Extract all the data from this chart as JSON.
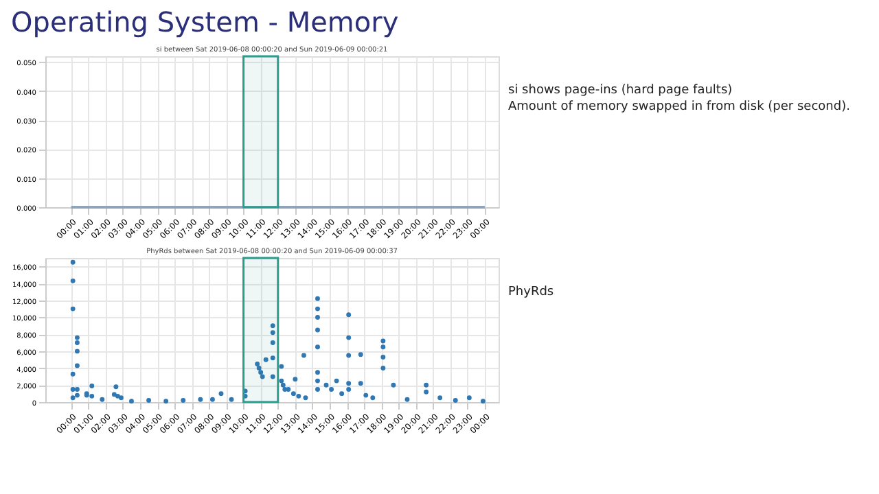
{
  "chart_data": [
    {
      "type": "line",
      "title": "si between Sat 2019-06-08 00:00:20 and Sun 2019-06-09 00:00:21",
      "annotations": [
        "Operating System - Memory",
        "si shows page-ins (hard page faults)",
        "Amount of memory swapped in from disk (per second)."
      ],
      "x": [
        0,
        24
      ],
      "series": [
        {
          "color": "#8fa4b8",
          "values": [
            0,
            0
          ]
        }
      ],
      "xlim": [
        -1.5,
        24.8
      ],
      "xticks": [
        {
          "value": 0,
          "label": "00:00"
        },
        {
          "value": 1,
          "label": "01:00"
        },
        {
          "value": 2,
          "label": "02:00"
        },
        {
          "value": 3,
          "label": "03:00"
        },
        {
          "value": 4,
          "label": "04:00"
        },
        {
          "value": 5,
          "label": "05:00"
        },
        {
          "value": 6,
          "label": "06:00"
        },
        {
          "value": 7,
          "label": "07:00"
        },
        {
          "value": 8,
          "label": "08:00"
        },
        {
          "value": 9,
          "label": "09:00"
        },
        {
          "value": 10,
          "label": "10:00"
        },
        {
          "value": 11,
          "label": "11:00"
        },
        {
          "value": 12,
          "label": "12:00"
        },
        {
          "value": 13,
          "label": "13:00"
        },
        {
          "value": 14,
          "label": "14:00"
        },
        {
          "value": 15,
          "label": "15:00"
        },
        {
          "value": 16,
          "label": "16:00"
        },
        {
          "value": 17,
          "label": "17:00"
        },
        {
          "value": 18,
          "label": "18:00"
        },
        {
          "value": 19,
          "label": "19:00"
        },
        {
          "value": 20,
          "label": "20:00"
        },
        {
          "value": 21,
          "label": "21:00"
        },
        {
          "value": 22,
          "label": "22:00"
        },
        {
          "value": 23,
          "label": "23:00"
        },
        {
          "value": 24,
          "label": "00:00"
        }
      ],
      "ylim": [
        0,
        0.052
      ],
      "yticks": [
        {
          "value": 0,
          "label": "0.000"
        },
        {
          "value": 0.01,
          "label": "0.010"
        },
        {
          "value": 0.02,
          "label": "0.020"
        },
        {
          "value": 0.03,
          "label": "0.030"
        },
        {
          "value": 0.04,
          "label": "0.040"
        },
        {
          "value": 0.05,
          "label": "0.050"
        }
      ],
      "grid": true,
      "legend": false,
      "marker": "none",
      "line_style": "solid",
      "bands": [
        {
          "axis": "x",
          "from": 10,
          "to": 12,
          "color": "#2a9d8f"
        }
      ]
    },
    {
      "type": "scatter",
      "title": "PhyRds between Sat 2019-06-08 00:00:20 and Sun 2019-06-09 00:00:37",
      "annotations": [
        "PhyRds"
      ],
      "x": [
        0.1,
        0.1,
        0.1,
        0.1,
        0.1,
        0.1,
        0.35,
        0.35,
        0.35,
        0.35,
        0.35,
        0.35,
        0.9,
        0.9,
        1.2,
        1.2,
        1.8,
        2.5,
        2.7,
        2.9,
        2.6,
        3.5,
        4.5,
        5.5,
        6.5,
        7.5,
        8.2,
        8.7,
        9.3,
        10.1,
        10.1,
        10.8,
        10.9,
        11.0,
        11.1,
        11.3,
        11.7,
        11.7,
        11.7,
        11.7,
        11.7,
        12.2,
        12.3,
        12.4,
        12.2,
        12.6,
        12.9,
        13.2,
        13.6,
        13.0,
        13.5,
        14.3,
        14.3,
        14.3,
        14.3,
        14.3,
        14.3,
        14.3,
        14.3,
        14.8,
        15.1,
        15.7,
        15.4,
        16.1,
        16.1,
        16.1,
        16.1,
        16.1,
        16.8,
        16.8,
        17.1,
        17.5,
        18.1,
        18.1,
        18.1,
        18.1,
        18.7,
        19.5,
        20.6,
        20.6,
        21.4,
        22.3,
        23.1,
        23.9
      ],
      "series": [
        {
          "color": "#2f78b4",
          "values": [
            16500,
            14300,
            11000,
            3300,
            1500,
            500,
            7600,
            7000,
            6000,
            4300,
            1500,
            800,
            1000,
            800,
            1900,
            700,
            300,
            900,
            700,
            500,
            1800,
            100,
            200,
            100,
            200,
            300,
            300,
            1000,
            300,
            1300,
            700,
            4500,
            4000,
            3500,
            3000,
            5000,
            9000,
            8200,
            7000,
            5200,
            3000,
            2500,
            2000,
            1500,
            4200,
            1500,
            1000,
            700,
            500,
            2700,
            5500,
            12200,
            11000,
            10000,
            8500,
            6500,
            3500,
            2500,
            1500,
            2000,
            1500,
            1000,
            2500,
            10300,
            7600,
            5500,
            2200,
            1500,
            5600,
            2200,
            800,
            500,
            7200,
            6500,
            5300,
            4000,
            2000,
            300,
            2000,
            1200,
            500,
            200,
            500,
            100
          ]
        }
      ],
      "xlim": [
        -1.5,
        24.8
      ],
      "xticks": [
        {
          "value": 0,
          "label": "00:00"
        },
        {
          "value": 1,
          "label": "01:00"
        },
        {
          "value": 2,
          "label": "02:00"
        },
        {
          "value": 3,
          "label": "03:00"
        },
        {
          "value": 4,
          "label": "04:00"
        },
        {
          "value": 5,
          "label": "05:00"
        },
        {
          "value": 6,
          "label": "06:00"
        },
        {
          "value": 7,
          "label": "07:00"
        },
        {
          "value": 8,
          "label": "08:00"
        },
        {
          "value": 9,
          "label": "09:00"
        },
        {
          "value": 10,
          "label": "10:00"
        },
        {
          "value": 11,
          "label": "11:00"
        },
        {
          "value": 12,
          "label": "12:00"
        },
        {
          "value": 13,
          "label": "13:00"
        },
        {
          "value": 14,
          "label": "14:00"
        },
        {
          "value": 15,
          "label": "15:00"
        },
        {
          "value": 16,
          "label": "16:00"
        },
        {
          "value": 17,
          "label": "17:00"
        },
        {
          "value": 18,
          "label": "18:00"
        },
        {
          "value": 19,
          "label": "19:00"
        },
        {
          "value": 20,
          "label": "20:00"
        },
        {
          "value": 21,
          "label": "21:00"
        },
        {
          "value": 22,
          "label": "22:00"
        },
        {
          "value": 23,
          "label": "23:00"
        },
        {
          "value": 24,
          "label": "00:00"
        }
      ],
      "ylim": [
        0,
        17000
      ],
      "yticks": [
        {
          "value": 0,
          "label": "0"
        },
        {
          "value": 2000,
          "label": "2,000"
        },
        {
          "value": 4000,
          "label": "4,000"
        },
        {
          "value": 6000,
          "label": "6,000"
        },
        {
          "value": 8000,
          "label": "8,000"
        },
        {
          "value": 10000,
          "label": "10,000"
        },
        {
          "value": 12000,
          "label": "12,000"
        },
        {
          "value": 14000,
          "label": "14,000"
        },
        {
          "value": 16000,
          "label": "16,000"
        }
      ],
      "grid": true,
      "legend": false,
      "marker": "circle",
      "bands": [
        {
          "axis": "x",
          "from": 10,
          "to": 12,
          "color": "#2a9d8f"
        }
      ]
    }
  ]
}
